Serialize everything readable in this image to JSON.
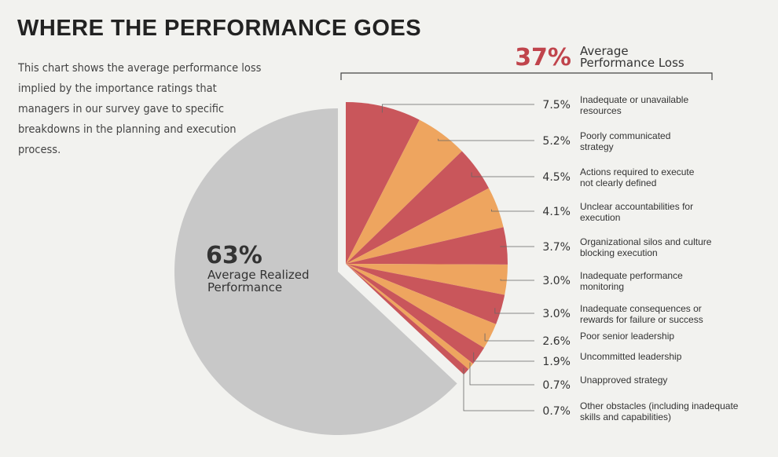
{
  "title": "WHERE THE PERFORMANCE GOES",
  "description": "This chart shows the average performance loss implied by the importance ratings that managers in our survey gave to specific breakdowns in the planning and execution process.",
  "colors": {
    "red": "#c9565b",
    "orange": "#eea55f",
    "gray": "#c8c8c8",
    "loss_text": "#c0444c"
  },
  "chart_data": {
    "type": "pie",
    "realized": {
      "value": 63,
      "label_pct": "63%",
      "label_line1": "Average Realized",
      "label_line2": "Performance"
    },
    "loss": {
      "value": 37,
      "label_pct": "37%",
      "label_line1": "Average",
      "label_line2": "Performance Loss"
    },
    "slices": [
      {
        "value": 7.5,
        "pct": "7.5%",
        "lines": [
          "Inadequate or unavailable",
          "resources"
        ]
      },
      {
        "value": 5.2,
        "pct": "5.2%",
        "lines": [
          "Poorly communicated",
          "strategy"
        ]
      },
      {
        "value": 4.5,
        "pct": "4.5%",
        "lines": [
          "Actions required to execute",
          "not clearly defined"
        ]
      },
      {
        "value": 4.1,
        "pct": "4.1%",
        "lines": [
          "Unclear accountabilities for",
          "execution"
        ]
      },
      {
        "value": 3.7,
        "pct": "3.7%",
        "lines": [
          "Organizational silos and culture",
          "blocking execution"
        ]
      },
      {
        "value": 3.0,
        "pct": "3.0%",
        "lines": [
          "Inadequate performance",
          "monitoring"
        ]
      },
      {
        "value": 3.0,
        "pct": "3.0%",
        "lines": [
          "Inadequate consequences or",
          "rewards for failure or success"
        ]
      },
      {
        "value": 2.6,
        "pct": "2.6%",
        "lines": [
          "Poor senior leadership"
        ]
      },
      {
        "value": 1.9,
        "pct": "1.9%",
        "lines": [
          "Uncommitted leadership"
        ]
      },
      {
        "value": 0.7,
        "pct": "0.7%",
        "lines": [
          "Unapproved strategy"
        ]
      },
      {
        "value": 0.7,
        "pct": "0.7%",
        "lines": [
          "Other obstacles (including inadequate",
          "skills and capabilities)"
        ]
      }
    ]
  }
}
